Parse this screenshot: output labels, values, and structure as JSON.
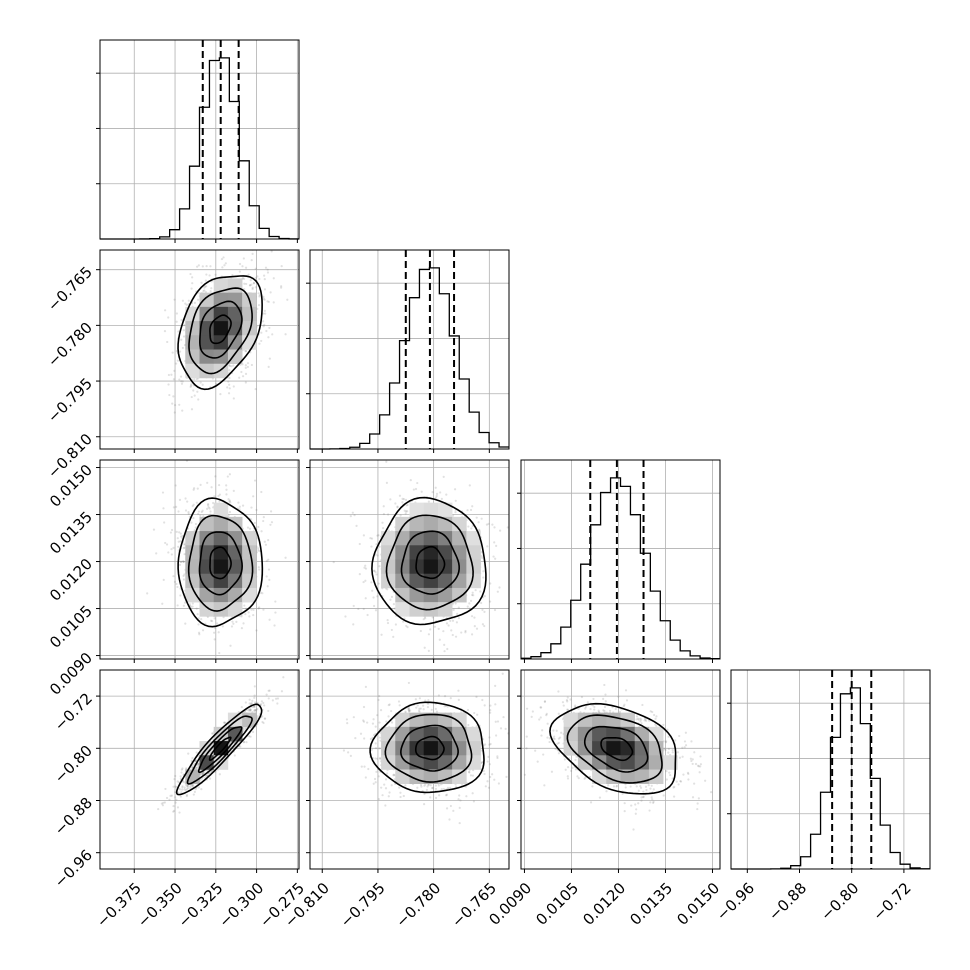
{
  "chart_data": {
    "type": "corner",
    "grid": true,
    "parameters": [
      {
        "id": "p0",
        "median": -0.3225,
        "sigma": 0.0112,
        "q16": -0.333,
        "q50": -0.322,
        "q84": -0.311,
        "range": [
          -0.396,
          -0.274
        ],
        "ticks": [
          -0.375,
          -0.35,
          -0.325,
          -0.3,
          -0.275
        ],
        "tick_labels": [
          "−0.375",
          "−0.350",
          "−0.325",
          "−0.300",
          "−0.275"
        ]
      },
      {
        "id": "p1",
        "median": -0.781,
        "sigma": 0.0066,
        "q16": -0.7875,
        "q50": -0.781,
        "q84": -0.7745,
        "range": [
          -0.8133,
          -0.7597
        ],
        "ticks": [
          -0.81,
          -0.795,
          -0.78,
          -0.765
        ],
        "tick_labels": [
          "−0.810",
          "−0.795",
          "−0.780",
          "−0.765"
        ]
      },
      {
        "id": "p2",
        "median": 0.01195,
        "sigma": 0.00087,
        "q16": 0.0111,
        "q50": 0.01195,
        "q84": 0.0128,
        "range": [
          0.00889,
          0.01524
        ],
        "ticks": [
          0.009,
          0.0105,
          0.012,
          0.0135,
          0.015
        ],
        "tick_labels": [
          "0.0090",
          "0.0105",
          "0.0120",
          "0.0135",
          "0.0150"
        ]
      },
      {
        "id": "p3",
        "median": -0.8,
        "sigma": 0.03,
        "q16": -0.83,
        "q50": -0.8,
        "q84": -0.77,
        "range": [
          -0.985,
          -0.68
        ],
        "ticks": [
          -0.96,
          -0.88,
          -0.8,
          -0.72
        ],
        "tick_labels": [
          "−0.96",
          "−0.88",
          "−0.80",
          "−0.72"
        ]
      }
    ],
    "correlations": [
      {
        "row": 1,
        "col": 0,
        "rho": 0.35
      },
      {
        "row": 2,
        "col": 0,
        "rho": 0.0
      },
      {
        "row": 2,
        "col": 1,
        "rho": 0.0
      },
      {
        "row": 3,
        "col": 0,
        "rho": 0.92
      },
      {
        "row": 3,
        "col": 1,
        "rho": 0.0
      },
      {
        "row": 3,
        "col": 2,
        "rho": -0.35
      }
    ],
    "histogram_bins": 20,
    "contour_levels_sigma": [
      0.5,
      1.0,
      1.5,
      2.0
    ],
    "colors": {
      "line": "#000000",
      "points": "#777777",
      "grid": "#b0b0b0"
    }
  }
}
